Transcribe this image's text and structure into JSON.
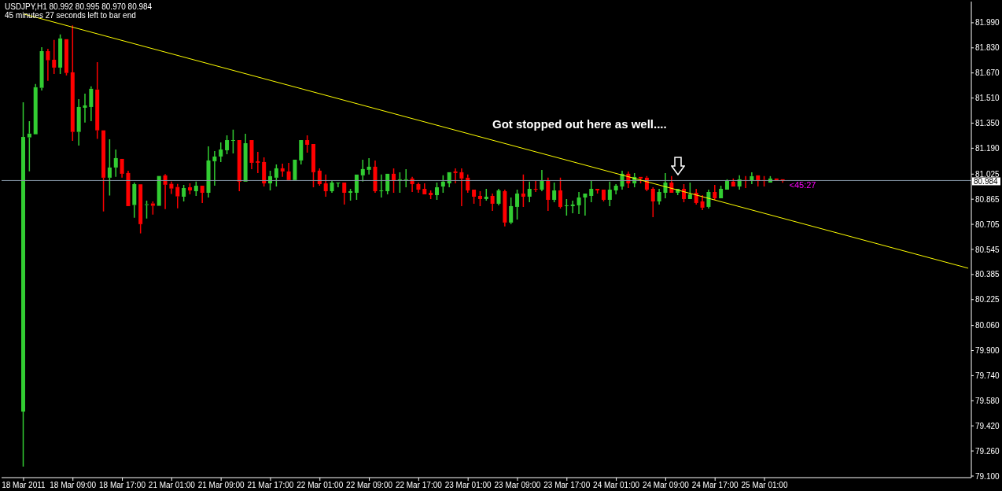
{
  "chart_data": {
    "type": "candlestick",
    "title": "USDJPY,H1 80.992 80.995 80.970 80.984",
    "subtitle": "45 minutes 27 seconds left to bar end",
    "categories": [
      "18 Mar 2011",
      null,
      null,
      null,
      null,
      null,
      null,
      null,
      "18 Mar 09:00",
      null,
      null,
      null,
      null,
      null,
      null,
      null,
      "18 Mar 17:00",
      null,
      null,
      null,
      null,
      null,
      null,
      null,
      "21 Mar 01:00",
      null,
      null,
      null,
      null,
      null,
      null,
      null,
      "21 Mar 09:00",
      null,
      null,
      null,
      null,
      null,
      null,
      null,
      "21 Mar 17:00",
      null,
      null,
      null,
      null,
      null,
      null,
      null,
      "22 Mar 01:00",
      null,
      null,
      null,
      null,
      null,
      null,
      null,
      "22 Mar 09:00",
      null,
      null,
      null,
      null,
      null,
      null,
      null,
      "22 Mar 17:00",
      null,
      null,
      null,
      null,
      null,
      null,
      null,
      "23 Mar 01:00",
      null,
      null,
      null,
      null,
      null,
      null,
      null,
      "23 Mar 09:00",
      null,
      null,
      null,
      null,
      null,
      null,
      null,
      "23 Mar 17:00",
      null,
      null,
      null,
      null,
      null,
      null,
      null,
      "24 Mar 01:00",
      null,
      null,
      null,
      null,
      null,
      null,
      null,
      "24 Mar 09:00",
      null,
      null,
      null,
      null,
      null,
      null,
      null,
      "24 Mar 17:00",
      null,
      null,
      null,
      null,
      null,
      null,
      null,
      "25 Mar 01:00",
      null,
      null,
      null,
      null,
      null,
      null,
      null,
      null,
      null,
      null,
      null,
      null,
      null,
      null,
      null,
      null,
      null,
      null,
      null,
      null,
      null,
      null,
      null,
      null,
      null,
      null,
      null,
      null,
      null,
      null,
      null,
      null,
      null
    ],
    "ohlc": [
      [
        79.511,
        81.483,
        79.16,
        81.262
      ],
      [
        81.259,
        81.363,
        81.043,
        81.283
      ],
      [
        81.279,
        81.599,
        81.277,
        81.579
      ],
      [
        81.575,
        81.834,
        81.558,
        81.809
      ],
      [
        81.809,
        81.824,
        81.62,
        81.751
      ],
      [
        81.754,
        81.88,
        81.664,
        81.704
      ],
      [
        81.704,
        81.915,
        81.664,
        81.89
      ],
      [
        81.885,
        81.89,
        81.654,
        81.67
      ],
      [
        81.674,
        81.973,
        81.237,
        81.294
      ],
      [
        81.294,
        81.503,
        81.207,
        81.453
      ],
      [
        81.448,
        81.538,
        81.354,
        81.463
      ],
      [
        81.453,
        81.584,
        81.363,
        81.569
      ],
      [
        81.564,
        81.739,
        81.249,
        81.304
      ],
      [
        81.304,
        81.304,
        80.787,
        81.002
      ],
      [
        81.002,
        81.247,
        80.888,
        81.067
      ],
      [
        81.067,
        81.182,
        81.008,
        81.127
      ],
      [
        81.122,
        81.127,
        81.002,
        81.027
      ],
      [
        81.032,
        81.047,
        80.816,
        80.821
      ],
      [
        80.828,
        80.971,
        80.747,
        80.961
      ],
      [
        80.96,
        80.963,
        80.647,
        80.706
      ],
      [
        80.828,
        80.856,
        80.742,
        80.833
      ],
      [
        80.838,
        80.851,
        80.767,
        80.823
      ],
      [
        80.823,
        81.013,
        80.823,
        81.013
      ],
      [
        81.017,
        81.025,
        80.802,
        80.957
      ],
      [
        80.963,
        80.977,
        80.898,
        80.933
      ],
      [
        80.943,
        80.963,
        80.807,
        80.883
      ],
      [
        80.881,
        80.956,
        80.851,
        80.936
      ],
      [
        80.941,
        80.966,
        80.896,
        80.921
      ],
      [
        80.916,
        80.977,
        80.886,
        80.951
      ],
      [
        80.951,
        80.951,
        80.841,
        80.906
      ],
      [
        80.906,
        81.202,
        80.876,
        81.112
      ],
      [
        81.107,
        81.172,
        80.951,
        81.137
      ],
      [
        81.137,
        81.227,
        81.102,
        81.182
      ],
      [
        81.177,
        81.272,
        81.152,
        81.242
      ],
      [
        81.237,
        81.308,
        81.157,
        81.242
      ],
      [
        81.242,
        81.247,
        80.916,
        80.977
      ],
      [
        80.977,
        81.282,
        80.977,
        81.222
      ],
      [
        81.242,
        81.242,
        81.057,
        81.097
      ],
      [
        81.107,
        81.167,
        81.032,
        81.097
      ],
      [
        81.102,
        81.132,
        80.946,
        80.966
      ],
      [
        80.966,
        81.047,
        80.921,
        81.012
      ],
      [
        81.002,
        81.087,
        80.946,
        81.062
      ],
      [
        81.062,
        81.092,
        81.007,
        81.042
      ],
      [
        81.042,
        81.097,
        80.987,
        80.987
      ],
      [
        80.987,
        81.122,
        80.982,
        81.117
      ],
      [
        81.112,
        81.242,
        81.087,
        81.242
      ],
      [
        81.242,
        81.272,
        81.162,
        81.212
      ],
      [
        81.217,
        81.217,
        80.941,
        81.037
      ],
      [
        81.047,
        81.062,
        80.951,
        80.961
      ],
      [
        80.966,
        81.022,
        80.881,
        80.916
      ],
      [
        80.916,
        80.982,
        80.906,
        80.971
      ],
      [
        80.966,
        80.971,
        80.941,
        80.971
      ],
      [
        80.971,
        80.971,
        80.831,
        80.906
      ],
      [
        80.906,
        80.931,
        80.856,
        80.916
      ],
      [
        80.906,
        81.022,
        80.861,
        81.022
      ],
      [
        81.017,
        81.117,
        80.977,
        81.057
      ],
      [
        81.052,
        81.127,
        81.022,
        81.072
      ],
      [
        81.072,
        81.112,
        80.906,
        80.916
      ],
      [
        80.916,
        81.022,
        80.876,
        80.921
      ],
      [
        80.916,
        81.032,
        80.896,
        81.027
      ],
      [
        81.027,
        81.062,
        80.906,
        80.982
      ],
      [
        80.987,
        81.037,
        80.906,
        80.992
      ],
      [
        80.987,
        81.057,
        80.941,
        80.992
      ],
      [
        80.997,
        81.007,
        80.911,
        80.961
      ],
      [
        80.961,
        80.971,
        80.906,
        80.926
      ],
      [
        80.931,
        80.966,
        80.891,
        80.896
      ],
      [
        80.906,
        80.921,
        80.866,
        80.891
      ],
      [
        80.891,
        80.971,
        80.861,
        80.941
      ],
      [
        80.946,
        81.017,
        80.906,
        80.977
      ],
      [
        80.966,
        81.042,
        80.941,
        81.037
      ],
      [
        81.042,
        81.062,
        80.966,
        81.032
      ],
      [
        81.037,
        81.062,
        80.821,
        80.997
      ],
      [
        81.002,
        81.022,
        80.906,
        80.921
      ],
      [
        80.926,
        80.931,
        80.836,
        80.881
      ],
      [
        80.886,
        80.916,
        80.821,
        80.866
      ],
      [
        80.866,
        80.931,
        80.856,
        80.881
      ],
      [
        80.886,
        80.901,
        80.791,
        80.836
      ],
      [
        80.836,
        80.931,
        80.826,
        80.921
      ],
      [
        80.916,
        80.926,
        80.691,
        80.716
      ],
      [
        80.716,
        80.876,
        80.706,
        80.821
      ],
      [
        80.816,
        80.926,
        80.736,
        80.901
      ],
      [
        80.901,
        81.022,
        80.816,
        80.881
      ],
      [
        80.881,
        80.977,
        80.846,
        80.931
      ],
      [
        80.931,
        80.982,
        80.911,
        80.926
      ],
      [
        80.926,
        81.052,
        80.916,
        80.982
      ],
      [
        80.982,
        81.002,
        80.791,
        80.861
      ],
      [
        80.861,
        80.971,
        80.846,
        80.921
      ],
      [
        80.921,
        81.002,
        80.806,
        80.816
      ],
      [
        80.821,
        80.866,
        80.761,
        80.826
      ],
      [
        80.821,
        80.856,
        80.776,
        80.831
      ],
      [
        80.826,
        80.911,
        80.771,
        80.876
      ],
      [
        80.876,
        80.906,
        80.761,
        80.901
      ],
      [
        80.886,
        80.982,
        80.846,
        80.931
      ],
      [
        80.931,
        80.936,
        80.901,
        80.921
      ],
      [
        80.926,
        80.926,
        80.851,
        80.861
      ],
      [
        80.861,
        80.977,
        80.821,
        80.926
      ],
      [
        80.921,
        80.961,
        80.896,
        80.951
      ],
      [
        80.946,
        81.047,
        80.926,
        81.027
      ],
      [
        81.027,
        81.042,
        80.936,
        80.966
      ],
      [
        80.966,
        81.032,
        80.941,
        81.007
      ],
      [
        81.007,
        81.007,
        80.966,
        80.997
      ],
      [
        81.002,
        81.012,
        80.916,
        80.926
      ],
      [
        80.931,
        80.941,
        80.751,
        80.851
      ],
      [
        80.851,
        80.931,
        80.831,
        80.911
      ],
      [
        80.906,
        81.032,
        80.871,
        80.971
      ],
      [
        80.971,
        81.012,
        80.901,
        80.906
      ],
      [
        80.906,
        80.931,
        80.891,
        80.931
      ],
      [
        80.931,
        80.961,
        80.846,
        80.866
      ],
      [
        80.866,
        80.971,
        80.866,
        80.896
      ],
      [
        80.906,
        80.931,
        80.831,
        80.841
      ],
      [
        80.851,
        80.891,
        80.796,
        80.811
      ],
      [
        80.816,
        80.926,
        80.806,
        80.911
      ],
      [
        80.911,
        80.956,
        80.861,
        80.871
      ],
      [
        80.871,
        80.951,
        80.871,
        80.931
      ],
      [
        80.926,
        80.992,
        80.921,
        80.982
      ],
      [
        80.977,
        80.997,
        80.946,
        80.946
      ],
      [
        80.946,
        81.017,
        80.926,
        80.992
      ],
      [
        80.987,
        81.012,
        80.936,
        80.982
      ],
      [
        80.982,
        81.037,
        80.961,
        81.012
      ],
      [
        81.017,
        81.017,
        80.946,
        80.982
      ],
      [
        80.987,
        81.012,
        80.946,
        80.982
      ],
      [
        80.971,
        81.012,
        80.966,
        80.997
      ],
      [
        80.997,
        81.002,
        80.982,
        80.987
      ],
      [
        80.992,
        80.995,
        80.97,
        80.984
      ],
      null,
      null,
      null,
      null,
      null,
      null,
      null,
      null,
      null,
      null,
      null,
      null,
      null,
      null,
      null,
      null,
      null,
      null,
      null,
      null,
      null,
      null,
      null,
      null,
      null,
      null,
      null,
      null,
      null,
      null
    ],
    "colors": [
      "#32cd32",
      "#32cd32",
      "#32cd32",
      "#32cd32",
      "#ff0000",
      "#ff0000",
      "#32cd32",
      "#ff0000",
      "#ff0000",
      "#32cd32",
      "#32cd32",
      "#32cd32",
      "#ff0000",
      "#ff0000",
      "#32cd32",
      "#32cd32",
      "#ff0000",
      "#ff0000",
      "#32cd32",
      "#ff0000",
      "#32cd32",
      "#ff0000",
      "#32cd32",
      "#ff0000",
      "#ff0000",
      "#ff0000",
      "#32cd32",
      "#ff0000",
      "#32cd32",
      "#ff0000",
      "#32cd32",
      "#32cd32",
      "#32cd32",
      "#32cd32",
      "#32cd32",
      "#ff0000",
      "#32cd32",
      "#ff0000",
      "#ff0000",
      "#ff0000",
      "#32cd32",
      "#32cd32",
      "#ff0000",
      "#ff0000",
      "#32cd32",
      "#32cd32",
      "#ff0000",
      "#ff0000",
      "#ff0000",
      "#ff0000",
      "#32cd32",
      "#32cd32",
      "#ff0000",
      "#32cd32",
      "#32cd32",
      "#32cd32",
      "#32cd32",
      "#ff0000",
      "#32cd32",
      "#32cd32",
      "#ff0000",
      "#32cd32",
      "#32cd32",
      "#ff0000",
      "#ff0000",
      "#ff0000",
      "#ff0000",
      "#32cd32",
      "#32cd32",
      "#32cd32",
      "#ff0000",
      "#ff0000",
      "#ff0000",
      "#ff0000",
      "#ff0000",
      "#32cd32",
      "#ff0000",
      "#32cd32",
      "#ff0000",
      "#32cd32",
      "#32cd32",
      "#ff0000",
      "#32cd32",
      "#ff0000",
      "#32cd32",
      "#ff0000",
      "#32cd32",
      "#ff0000",
      "#32cd32",
      "#32cd32",
      "#32cd32",
      "#32cd32",
      "#32cd32",
      "#ff0000",
      "#ff0000",
      "#32cd32",
      "#32cd32",
      "#32cd32",
      "#ff0000",
      "#32cd32",
      "#ff0000",
      "#ff0000",
      "#ff0000",
      "#32cd32",
      "#32cd32",
      "#ff0000",
      "#32cd32",
      "#ff0000",
      "#32cd32",
      "#ff0000",
      "#ff0000",
      "#32cd32",
      "#ff0000",
      "#32cd32",
      "#32cd32",
      "#ff0000",
      "#32cd32",
      "#ff0000",
      "#32cd32",
      "#ff0000",
      "#ff0000",
      "#32cd32",
      "#ff0000",
      "#ff0000",
      null,
      null,
      null,
      null,
      null,
      null,
      null,
      null,
      null,
      null,
      null,
      null,
      null,
      null,
      null,
      null,
      null,
      null,
      null,
      null,
      null,
      null,
      null,
      null,
      null,
      null,
      null,
      null,
      null,
      null
    ],
    "series": [
      {
        "type": "line",
        "color": "#ffff00",
        "values": [
          82.046,
          null,
          null,
          null,
          null,
          null,
          null,
          null,
          null,
          null,
          null,
          null,
          null,
          null,
          null,
          null,
          null,
          null,
          null,
          null,
          null,
          null,
          null,
          null,
          null,
          null,
          null,
          null,
          null,
          null,
          null,
          null,
          null,
          null,
          null,
          null,
          null,
          null,
          null,
          null,
          null,
          null,
          null,
          null,
          null,
          null,
          null,
          null,
          null,
          null,
          null,
          null,
          null,
          null,
          null,
          null,
          null,
          null,
          null,
          null,
          null,
          null,
          null,
          null,
          null,
          null,
          null,
          null,
          null,
          null,
          null,
          null,
          null,
          null,
          null,
          null,
          null,
          null,
          null,
          null,
          null,
          null,
          null,
          null,
          null,
          null,
          null,
          null,
          null,
          null,
          null,
          null,
          null,
          null,
          null,
          null,
          null,
          null,
          null,
          null,
          null,
          null,
          null,
          null,
          null,
          null,
          null,
          null,
          null,
          null,
          null,
          null,
          null,
          null,
          null,
          null,
          null,
          null,
          null,
          null,
          null,
          null,
          null,
          null,
          null,
          null,
          null,
          null,
          null,
          null,
          null,
          null,
          null,
          null,
          null,
          null,
          null,
          null,
          null,
          null,
          null,
          null,
          null,
          null,
          null,
          null,
          null,
          null,
          null,
          null,
          null,
          null,
          null,
          80.425
        ]
      }
    ],
    "ylim": [
      79.09,
      82.125
    ],
    "yticks": [
      {
        "value": 81.99,
        "label": "81.990"
      },
      {
        "value": 81.83,
        "label": "81.830"
      },
      {
        "value": 81.67,
        "label": "81.670"
      },
      {
        "value": 81.51,
        "label": "81.510"
      },
      {
        "value": 81.35,
        "label": "81.350"
      },
      {
        "value": 81.19,
        "label": "81.190"
      },
      81.025,
      80.865,
      80.705,
      80.545,
      80.385,
      80.225,
      {
        "value": 80.06,
        "label": "80.060"
      },
      {
        "value": 79.9,
        "label": "79.900"
      },
      {
        "value": 79.74,
        "label": "79.740"
      },
      {
        "value": 79.58,
        "label": "79.580"
      },
      {
        "value": 79.42,
        "label": "79.420"
      },
      {
        "value": 79.26,
        "label": "79.260"
      },
      {
        "value": 79.1,
        "label": "79.100"
      }
    ],
    "ref_lines": [
      {
        "axis": "y",
        "value": 80.984,
        "label": "80.984",
        "color": "#8899aa"
      }
    ],
    "annotations": [
      "Got stopped out here as well....",
      {
        "text": "<45:27",
        "y": 80.984
      }
    ]
  }
}
